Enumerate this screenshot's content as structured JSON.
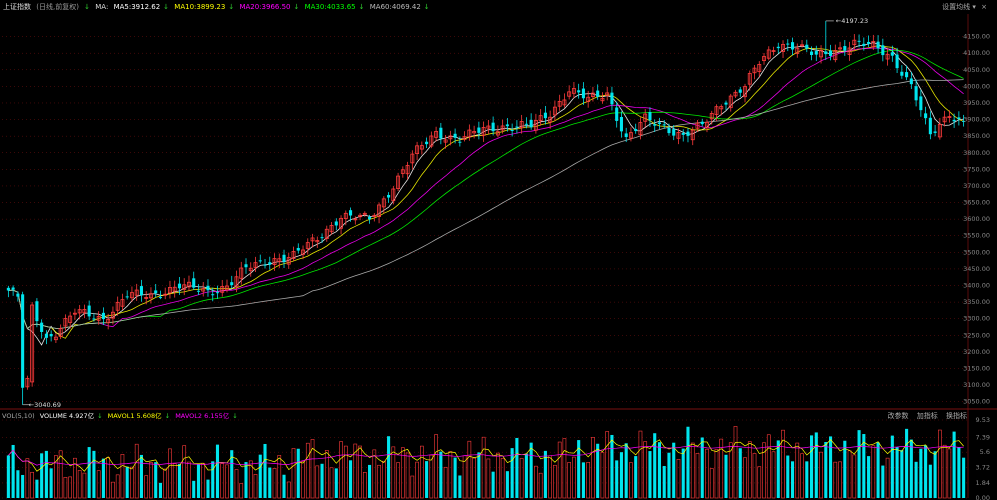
{
  "header": {
    "title": "上证指数",
    "subtitle": "(日线,前复权)",
    "ma_label": "MA:",
    "ma5": "MA5:3912.62",
    "ma10": "MA10:3899.23",
    "ma20": "MA20:3966.50",
    "ma30": "MA30:4033.65",
    "ma60": "MA60:4069.42",
    "settings": "设置均线"
  },
  "volume_header": {
    "label": "VOL(5,10)",
    "volume": "VOLUME 4.927亿",
    "mavol1": "MAVOL1 5.608亿",
    "mavol2": "MAVOL2 6.155亿",
    "btn_params": "改参数",
    "btn_add": "加指标",
    "btn_switch": "换指标"
  },
  "colors": {
    "up": "#ff3b3b",
    "down": "#00e5ee",
    "ma5": "#ffffff",
    "ma10": "#ffff00",
    "ma20": "#ff00ff",
    "ma30": "#00ff00",
    "ma60": "#bbbbbb",
    "grid": "#7a1010"
  },
  "annotations": {
    "high": "4197.23",
    "low": "3040.69"
  },
  "chart_data": [
    {
      "type": "candlestick",
      "title": "上证指数",
      "ylim": [
        3040,
        4200
      ],
      "y_ticks": [
        "4150.00",
        "4100.00",
        "4050.00",
        "4000.00",
        "3950.00",
        "3900.00",
        "3850.00",
        "3800.00",
        "3750.00",
        "3700.00",
        "3650.00",
        "3600.00",
        "3550.00",
        "3500.00",
        "3450.00",
        "3400.00",
        "3350.00",
        "3300.00",
        "3250.00",
        "3200.00",
        "3150.00",
        "3100.00",
        "3050.00"
      ],
      "high_value": 4197.23,
      "low_value": 3040.69,
      "anchor_closes": [
        [
          0,
          3385
        ],
        [
          5,
          3330
        ],
        [
          8,
          3240
        ],
        [
          10,
          3260
        ],
        [
          14,
          3320
        ],
        [
          20,
          3300
        ],
        [
          25,
          3370
        ],
        [
          30,
          3370
        ],
        [
          36,
          3400
        ],
        [
          42,
          3380
        ],
        [
          46,
          3400
        ],
        [
          50,
          3450
        ],
        [
          56,
          3480
        ],
        [
          60,
          3490
        ],
        [
          65,
          3540
        ],
        [
          70,
          3610
        ],
        [
          76,
          3600
        ],
        [
          80,
          3680
        ],
        [
          85,
          3790
        ],
        [
          90,
          3860
        ],
        [
          95,
          3840
        ],
        [
          100,
          3870
        ],
        [
          104,
          3880
        ],
        [
          110,
          3880
        ],
        [
          114,
          3920
        ],
        [
          118,
          3990
        ],
        [
          122,
          3960
        ],
        [
          126,
          3980
        ],
        [
          130,
          3840
        ],
        [
          134,
          3900
        ],
        [
          138,
          3880
        ],
        [
          142,
          3850
        ],
        [
          146,
          3880
        ],
        [
          150,
          3950
        ],
        [
          155,
          4000
        ],
        [
          158,
          4070
        ],
        [
          162,
          4130
        ],
        [
          166,
          4120
        ],
        [
          170,
          4090
        ],
        [
          174,
          4110
        ],
        [
          178,
          4130
        ],
        [
          182,
          4120
        ],
        [
          186,
          4090
        ],
        [
          190,
          4000
        ],
        [
          194,
          3850
        ],
        [
          198,
          3920
        ],
        [
          201,
          3890
        ]
      ]
    },
    {
      "type": "bar",
      "title": "VOL(5,10)",
      "ylim": [
        0,
        9.53
      ],
      "y_ticks": [
        "9.53",
        "7.39",
        "5.6",
        "3.72",
        "1.84",
        "0.00"
      ],
      "latest_volume": 4.927,
      "mavol1": 5.608,
      "mavol2": 6.155
    }
  ]
}
